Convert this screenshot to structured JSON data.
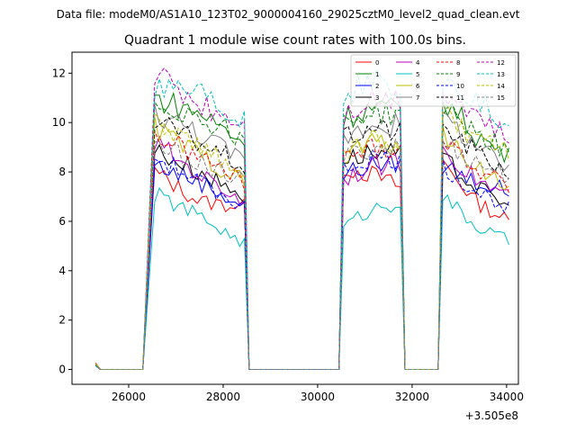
{
  "chart_data": {
    "type": "line",
    "suptitle": "Data file: modeM0/AS1A10_123T02_9000004160_29025cztM0_level2_quad_clean.evt",
    "title": "Quadrant 1 module wise count rates with 100.0s bins.",
    "xlabel": "",
    "ylabel": "",
    "offset_text": "+3.505e8",
    "xlim": [
      24800,
      34250
    ],
    "ylim": [
      -0.6,
      12.85
    ],
    "xticks": [
      26000,
      28000,
      30000,
      32000,
      34000
    ],
    "xtick_labels": [
      "26000",
      "28000",
      "30000",
      "32000",
      "34000"
    ],
    "yticks": [
      0,
      2,
      4,
      6,
      8,
      10,
      12
    ],
    "ytick_labels": [
      "0",
      "2",
      "4",
      "6",
      "8",
      "10",
      "12"
    ],
    "legend_position": "upper right",
    "segments": [
      {
        "start": 25300,
        "end": 26350
      },
      {
        "start": 26550,
        "end": 28450
      },
      {
        "start": 28550,
        "end": 30450
      },
      {
        "start": 30550,
        "end": 31750
      },
      {
        "start": 31850,
        "end": 32550
      },
      {
        "start": 32650,
        "end": 34050
      }
    ],
    "start_values": [
      0.2,
      0.25,
      0.18,
      0.15,
      0.22,
      0.2,
      0.28,
      0.17,
      0.23,
      0.19,
      0.16,
      0.21,
      0.26,
      0.14,
      0.24,
      0.18
    ],
    "series": [
      {
        "name": "0",
        "color": "#ff0000",
        "dash": false,
        "active": [
          [
            8.0,
            6.8,
            6.6
          ],
          [
            8.2,
            7.9,
            7.4
          ],
          [
            8.4,
            6.8,
            6.0
          ]
        ]
      },
      {
        "name": "1",
        "color": "#008000",
        "dash": false,
        "active": [
          [
            11.0,
            10.4,
            9.2
          ],
          [
            10.2,
            10.6,
            10.5
          ],
          [
            11.0,
            9.5,
            8.6
          ]
        ]
      },
      {
        "name": "2",
        "color": "#0000ff",
        "dash": false,
        "active": [
          [
            8.3,
            7.6,
            6.6
          ],
          [
            7.9,
            8.3,
            8.3
          ],
          [
            8.3,
            7.6,
            7.2
          ]
        ]
      },
      {
        "name": "3",
        "color": "#000000",
        "dash": false,
        "active": [
          [
            8.9,
            8.0,
            7.0
          ],
          [
            8.5,
            8.8,
            8.7
          ],
          [
            8.5,
            7.4,
            6.6
          ]
        ]
      },
      {
        "name": "4",
        "color": "#bf00bf",
        "dash": false,
        "active": [
          [
            9.2,
            7.9,
            6.8
          ],
          [
            7.8,
            8.2,
            8.4
          ],
          [
            9.0,
            7.7,
            7.0
          ]
        ]
      },
      {
        "name": "5",
        "color": "#00bfbf",
        "dash": false,
        "active": [
          [
            7.1,
            6.2,
            5.1
          ],
          [
            5.8,
            6.5,
            6.8
          ],
          [
            7.0,
            5.8,
            5.2
          ]
        ]
      },
      {
        "name": "6",
        "color": "#bfbf00",
        "dash": false,
        "active": [
          [
            9.8,
            8.7,
            7.6
          ],
          [
            8.8,
            9.2,
            9.1
          ],
          [
            9.4,
            8.3,
            7.4
          ]
        ]
      },
      {
        "name": "7",
        "color": "#808080",
        "dash": false,
        "active": [
          [
            10.4,
            9.6,
            8.4
          ],
          [
            9.4,
            10.0,
            9.9
          ],
          [
            10.2,
            9.1,
            8.0
          ]
        ]
      },
      {
        "name": "8",
        "color": "#ff0000",
        "dash": true,
        "active": [
          [
            9.5,
            8.6,
            7.6
          ],
          [
            8.5,
            9.0,
            9.0
          ],
          [
            9.3,
            8.2,
            7.4
          ]
        ]
      },
      {
        "name": "9",
        "color": "#008000",
        "dash": true,
        "active": [
          [
            10.8,
            10.2,
            9.4
          ],
          [
            10.0,
            10.4,
            10.3
          ],
          [
            10.6,
            9.6,
            8.8
          ]
        ]
      },
      {
        "name": "10",
        "color": "#0000ff",
        "dash": true,
        "active": [
          [
            8.6,
            7.6,
            6.6
          ],
          [
            8.1,
            8.6,
            8.5
          ],
          [
            8.2,
            7.2,
            6.6
          ]
        ]
      },
      {
        "name": "11",
        "color": "#000000",
        "dash": true,
        "active": [
          [
            10.0,
            9.2,
            8.2
          ],
          [
            9.3,
            9.8,
            9.6
          ],
          [
            9.8,
            8.8,
            8.0
          ]
        ]
      },
      {
        "name": "12",
        "color": "#bf00bf",
        "dash": true,
        "active": [
          [
            12.0,
            10.8,
            10.0
          ],
          [
            10.4,
            11.0,
            11.0
          ],
          [
            11.4,
            10.4,
            9.2
          ]
        ]
      },
      {
        "name": "13",
        "color": "#00bfbf",
        "dash": true,
        "active": [
          [
            11.6,
            11.4,
            10.0
          ],
          [
            11.2,
            11.6,
            11.5
          ],
          [
            11.9,
            11.0,
            9.6
          ]
        ]
      },
      {
        "name": "14",
        "color": "#bfbf00",
        "dash": true,
        "active": [
          [
            10.0,
            9.0,
            8.0
          ],
          [
            8.6,
            9.4,
            9.0
          ],
          [
            10.4,
            9.3,
            8.8
          ]
        ]
      },
      {
        "name": "15",
        "color": "#808080",
        "dash": true,
        "active": [
          [
            9.0,
            8.4,
            7.6
          ],
          [
            8.6,
            9.0,
            9.0
          ],
          [
            9.2,
            8.4,
            7.8
          ]
        ]
      }
    ]
  }
}
